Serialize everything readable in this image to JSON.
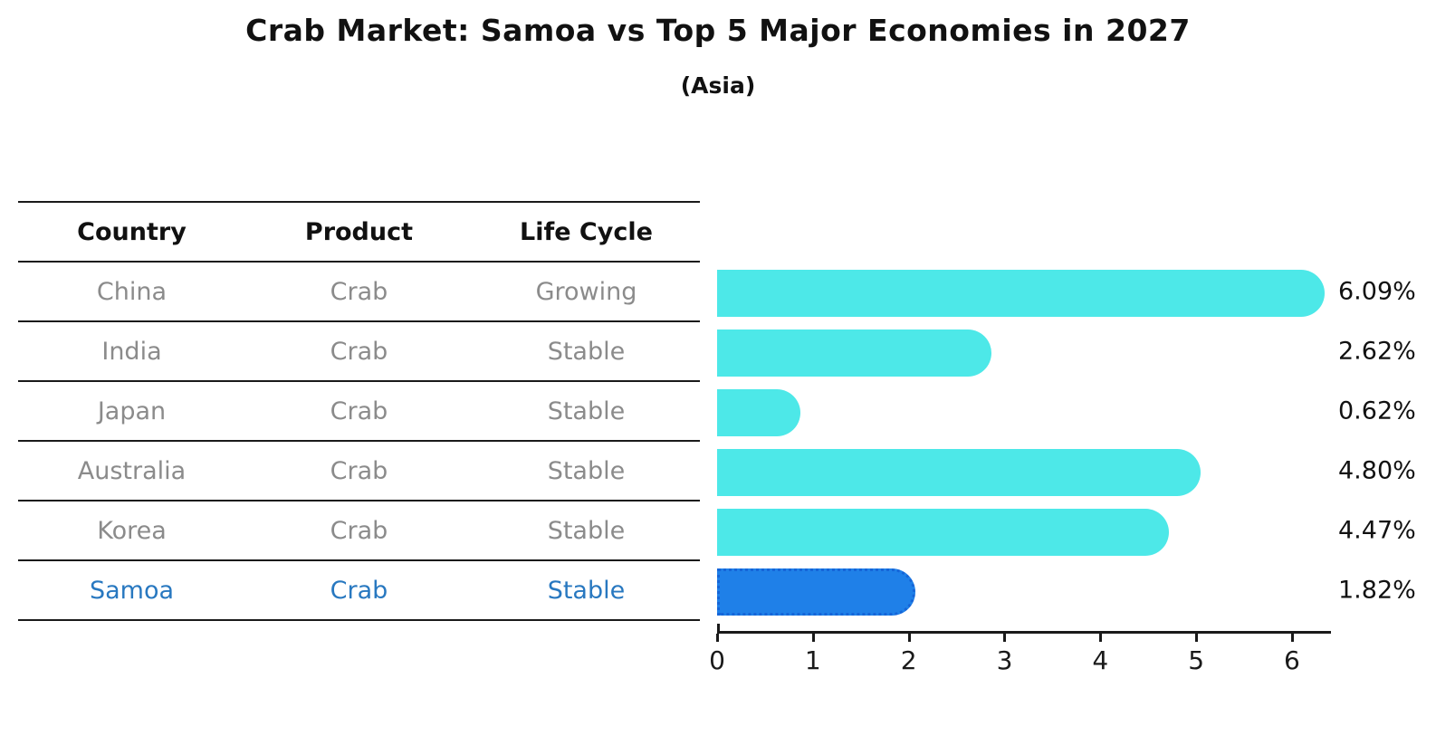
{
  "title": "Crab Market: Samoa vs Top 5 Major Economies in 2027",
  "subtitle": "(Asia)",
  "table": {
    "headers": [
      "Country",
      "Product",
      "Life Cycle"
    ],
    "rows": [
      {
        "country": "China",
        "product": "Crab",
        "life_cycle": "Growing",
        "highlight": false
      },
      {
        "country": "India",
        "product": "Crab",
        "life_cycle": "Stable",
        "highlight": false
      },
      {
        "country": "Japan",
        "product": "Crab",
        "life_cycle": "Stable",
        "highlight": false
      },
      {
        "country": "Australia",
        "product": "Crab",
        "life_cycle": "Stable",
        "highlight": false
      },
      {
        "country": "Korea",
        "product": "Crab",
        "life_cycle": "Stable",
        "highlight": false
      },
      {
        "country": "Samoa",
        "product": "Crab",
        "life_cycle": "Stable",
        "highlight": true
      }
    ]
  },
  "chart_data": {
    "type": "bar",
    "orientation": "horizontal",
    "title": "Crab Market: Samoa vs Top 5 Major Economies in 2027",
    "subtitle": "(Asia)",
    "categories": [
      "China",
      "India",
      "Japan",
      "Australia",
      "Korea",
      "Samoa"
    ],
    "values": [
      6.09,
      2.62,
      0.62,
      4.8,
      4.47,
      1.82
    ],
    "value_labels": [
      "6.09%",
      "2.62%",
      "0.62%",
      "4.80%",
      "4.47%",
      "1.82%"
    ],
    "x_ticks": [
      0,
      1,
      2,
      3,
      4,
      5,
      6
    ],
    "xlim": [
      0,
      6.4
    ],
    "grid": false,
    "legend": "none",
    "bar_color": "#4de8e8",
    "highlight_index": 5,
    "highlight_bar_color": "#1f80e8",
    "highlight_border_color": "#1565d8",
    "highlight_text_color": "#2878c0",
    "cell_text_color": "#8b8b8b"
  }
}
